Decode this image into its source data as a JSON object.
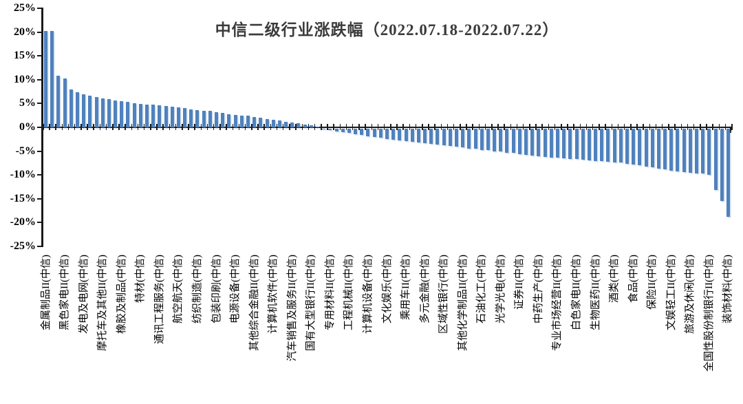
{
  "chart_data": {
    "type": "bar",
    "title": "中信二级行业涨跌幅（2022.07.18-2022.07.22）",
    "xlabel": "",
    "ylabel": "",
    "legend": "none",
    "grid": "off",
    "bar_color": "#4F81BD",
    "axis_color": "#1a1a1a",
    "ylim": [
      -25,
      25
    ],
    "y_tick_values": [
      25,
      20,
      15,
      10,
      5,
      0,
      -5,
      -10,
      -15,
      -20,
      -25
    ],
    "y_tick_labels": [
      "25%",
      "20%",
      "15%",
      "10%",
      "5%",
      "0%",
      "-5%",
      "-10%",
      "-15%",
      "-20%",
      "-25%"
    ],
    "category_label_interval": 3,
    "categories": [
      "金属制品II(中信)",
      "黑色家电II(中信)",
      "发电及电网(中信)",
      "摩托车及其他II(中信)",
      "橡胶及制品(中信)",
      "特材(中信)",
      "通讯工程服务(中信)",
      "航空航天(中信)",
      "纺织制造(中信)",
      "包装印刷(中信)",
      "电源设备(中信)",
      "其他综合金融II(中信)",
      "计算机软件(中信)",
      "汽车销售及服务II(中信)",
      "国有大型银行II(中信)",
      "专用材料II(中信)",
      "工程机械II(中信)",
      "计算机设备(中信)",
      "文化娱乐(中信)",
      "乘用车II(中信)",
      "多元金融(中信)",
      "区域性银行(中信)",
      "其他化学制品II(中信)",
      "石油化工(中信)",
      "光学光电(中信)",
      "证券II(中信)",
      "中药生产(中信)",
      "专业市场经营II(中信)",
      "白色家电II(中信)",
      "生物医药II(中信)",
      "酒类(中信)",
      "食品(中信)",
      "保险II(中信)",
      "文娱轻工II(中信)",
      "旅游及休闲(中信)",
      "全国性股份制银行II(中信)",
      "装饰材料(中信)"
    ],
    "values": [
      20.3,
      20.3,
      10.9,
      10.3,
      8.0,
      7.4,
      7.0,
      6.6,
      6.3,
      6.1,
      5.9,
      5.7,
      5.5,
      5.3,
      5.1,
      4.9,
      4.8,
      4.7,
      4.6,
      4.5,
      4.4,
      4.2,
      4.0,
      3.8,
      3.6,
      3.5,
      3.4,
      3.2,
      3.0,
      2.8,
      2.6,
      2.5,
      2.4,
      2.2,
      2.0,
      1.8,
      1.6,
      1.4,
      1.2,
      1.0,
      0.8,
      0.6,
      0.4,
      0.2,
      -0.1,
      -0.3,
      -0.6,
      -0.8,
      -1.0,
      -1.2,
      -1.4,
      -1.6,
      -1.8,
      -2.0,
      -2.2,
      -2.4,
      -2.5,
      -2.7,
      -2.8,
      -3.0,
      -3.1,
      -3.3,
      -3.4,
      -3.6,
      -3.7,
      -3.9,
      -4.0,
      -4.2,
      -4.3,
      -4.5,
      -4.6,
      -4.8,
      -4.9,
      -5.1,
      -5.2,
      -5.4,
      -5.5,
      -5.7,
      -5.8,
      -6.0,
      -6.1,
      -6.2,
      -6.3,
      -6.4,
      -6.5,
      -6.6,
      -6.7,
      -6.8,
      -6.9,
      -7.0,
      -7.1,
      -7.2,
      -7.4,
      -7.6,
      -7.8,
      -8.0,
      -8.2,
      -8.4,
      -8.6,
      -8.9,
      -9.1,
      -9.2,
      -9.3,
      -9.4,
      -9.5,
      -9.7,
      -13.0,
      -15.2,
      -18.5
    ]
  }
}
